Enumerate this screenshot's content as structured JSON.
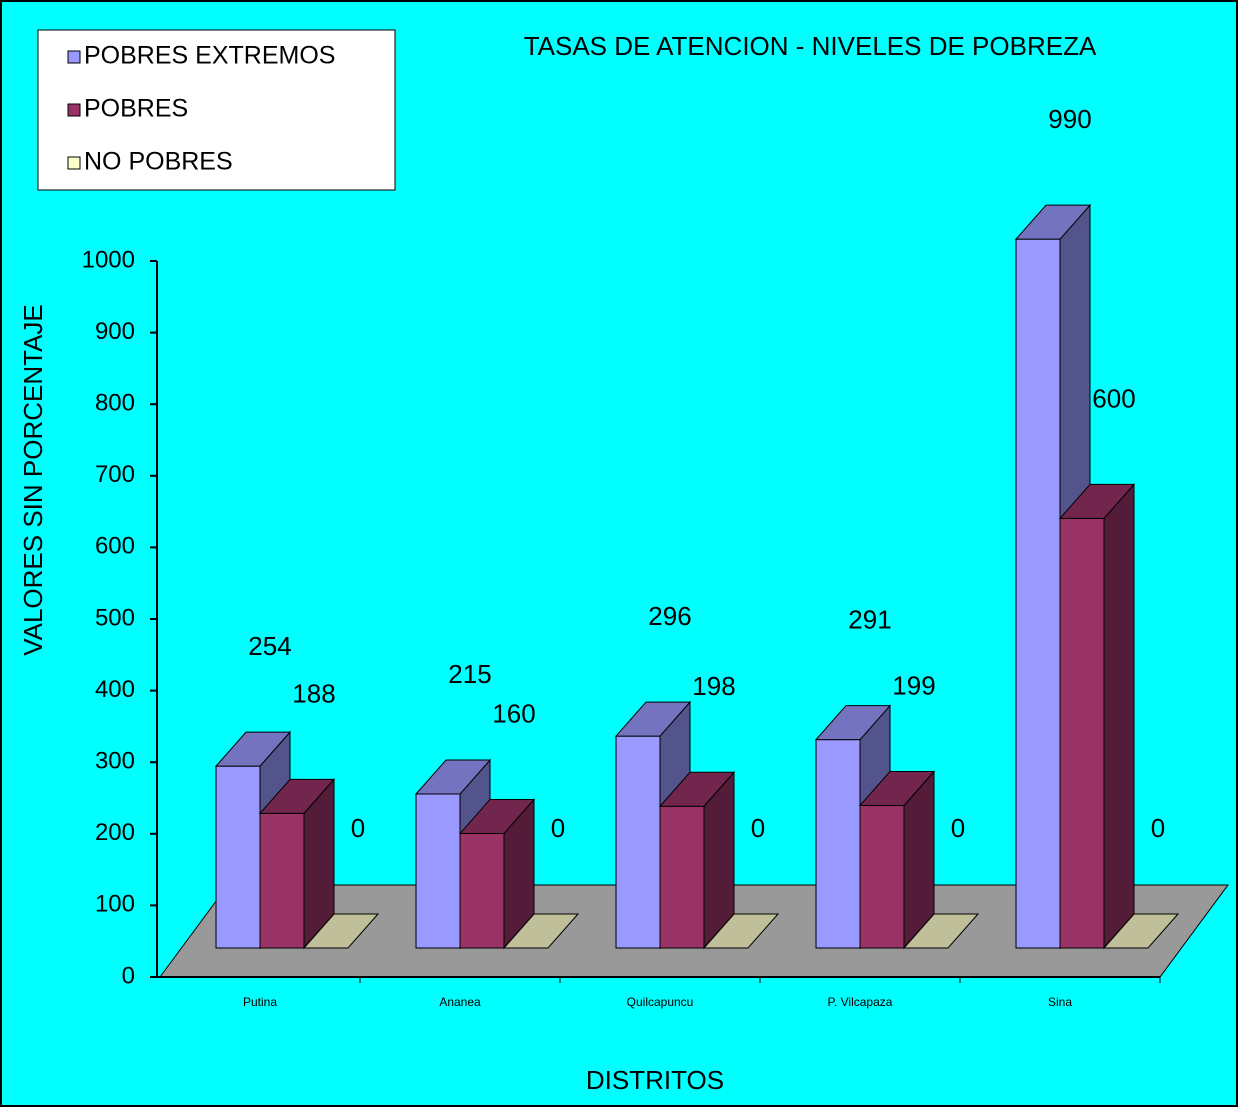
{
  "chart_data": {
    "type": "bar3d",
    "title": "TASAS DE ATENCION - NIVELES DE POBREZA",
    "x_label": "DISTRITOS",
    "y_label": "VALORES SIN PORCENTAJE",
    "categories": [
      "Putina",
      "Ananea",
      "Quilcapuncu",
      "P. Vilcapaza",
      "Sina"
    ],
    "series": [
      {
        "name": "POBRES EXTREMOS",
        "color": "#9999ff",
        "values": [
          254,
          215,
          296,
          291,
          990
        ]
      },
      {
        "name": "POBRES",
        "color": "#993366",
        "values": [
          188,
          160,
          198,
          199,
          600
        ]
      },
      {
        "name": "NO POBRES",
        "color": "#ffffcc",
        "values": [
          0,
          0,
          0,
          0,
          0
        ]
      }
    ],
    "ylim": [
      0,
      1000
    ],
    "yticks": [
      0,
      100,
      200,
      300,
      400,
      500,
      600,
      700,
      800,
      900,
      1000
    ],
    "legend": "upper left"
  }
}
